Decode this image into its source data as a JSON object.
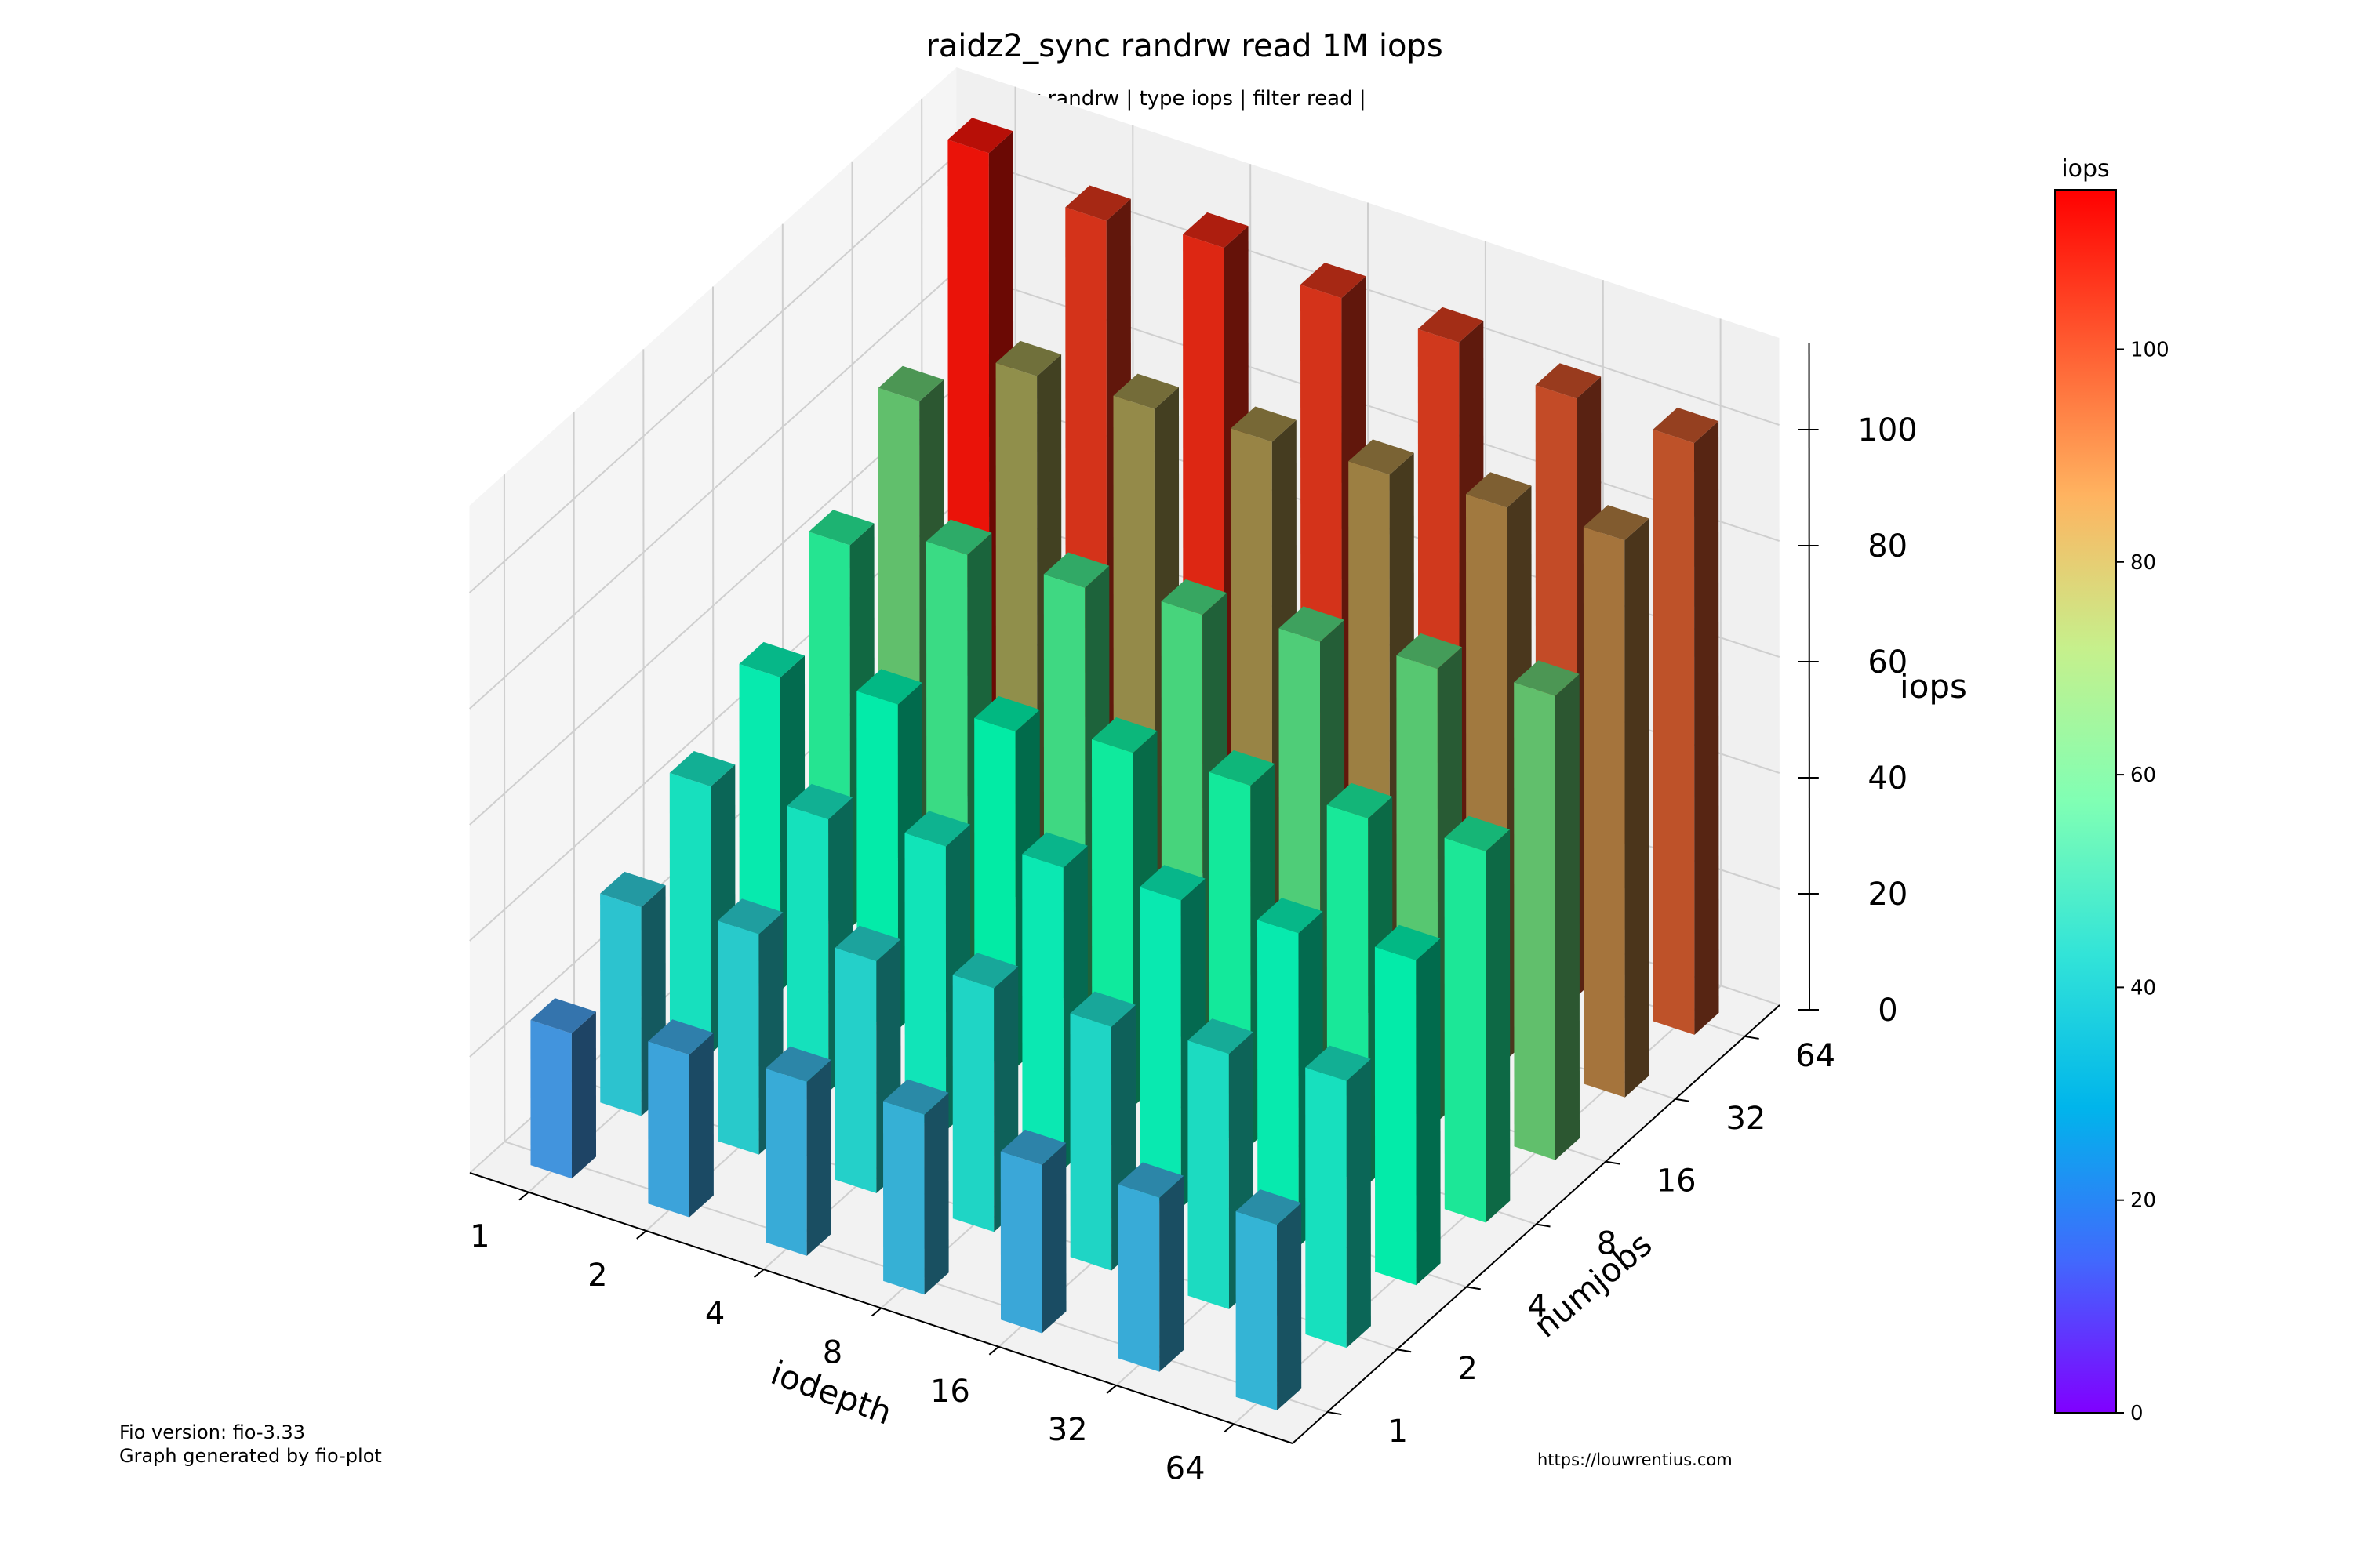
{
  "chart_data": {
    "type": "bar3d",
    "title": "raidz2_sync randrw read 1M iops",
    "subtitle": "| rw randrw | type iops | filter read |",
    "xlabel": "iodepth",
    "ylabel": "numjobs",
    "zlabel": "iops",
    "x_categories": [
      "1",
      "2",
      "4",
      "8",
      "16",
      "32",
      "64"
    ],
    "y_categories": [
      "1",
      "2",
      "4",
      "8",
      "16",
      "32",
      "64"
    ],
    "z_ticks": [
      "0",
      "20",
      "40",
      "60",
      "80",
      "100"
    ],
    "zlim": [
      0,
      115
    ],
    "values_by_numjobs": [
      {
        "numjobs": "1",
        "values": [
          25,
          28,
          30,
          31,
          29,
          30,
          32
        ]
      },
      {
        "numjobs": "2",
        "values": [
          36,
          38,
          40,
          42,
          42,
          44,
          46
        ]
      },
      {
        "numjobs": "4",
        "values": [
          46,
          47,
          49,
          52,
          53,
          54,
          56
        ]
      },
      {
        "numjobs": "8",
        "values": [
          54,
          56,
          58,
          61,
          62,
          63,
          64
        ]
      },
      {
        "numjobs": "16",
        "values": [
          66,
          71,
          72,
          74,
          76,
          78,
          80
        ]
      },
      {
        "numjobs": "32",
        "values": [
          80,
          91,
          92,
          93,
          94,
          95,
          96
        ]
      },
      {
        "numjobs": "64",
        "values": [
          112,
          107,
          109,
          107,
          106,
          103,
          102
        ]
      }
    ],
    "colorbar": {
      "label": "iops",
      "range": [
        0,
        115
      ],
      "ticks": [
        "0",
        "20",
        "40",
        "60",
        "80",
        "100"
      ]
    }
  },
  "footer": {
    "fio_version": "Fio version: fio-3.33",
    "generated_by": "Graph generated by fio-plot",
    "url": "https://louwrentius.com"
  }
}
